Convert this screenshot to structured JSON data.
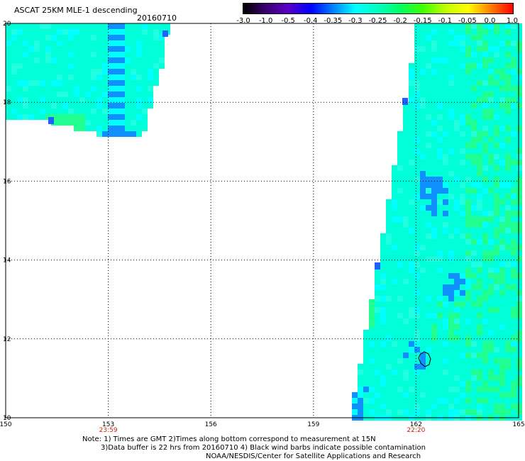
{
  "header": {
    "title": "ASCAT 25KM MLE-1 descending",
    "date": "20160710"
  },
  "colorbar": {
    "labels": [
      "-3.0",
      "-1.0",
      "-0.5",
      "-0.4",
      "-0.35",
      "-0.3",
      "-0.25",
      "-0.2",
      "-0.15",
      "-0.1",
      "-0.05",
      "0.0",
      "1.0"
    ],
    "colors": [
      "#000000",
      "#3a0070",
      "#5a00c8",
      "#0000ff",
      "#0080ff",
      "#00ffff",
      "#00ffc0",
      "#00ff60",
      "#40ff00",
      "#c0ff00",
      "#ffff00",
      "#ff8000",
      "#ff0000"
    ]
  },
  "map": {
    "lon_labels": [
      "150",
      "153",
      "156",
      "159",
      "162",
      "165"
    ],
    "lat_labels": [
      "20",
      "18",
      "16",
      "14",
      "12",
      "10"
    ],
    "time_labels": [
      {
        "lon": 153,
        "text": "23:59"
      },
      {
        "lon": 162,
        "text": "22:20"
      }
    ],
    "lon_range": [
      150,
      165
    ],
    "lat_range": [
      10,
      20
    ],
    "time_color": "#cc2200",
    "swath_colors": {
      "base": "#00ffd8",
      "cyan": "#00ffff",
      "light": "#20ffe0",
      "green": "#20ff90",
      "blue": "#1090ff",
      "deep_blue": "#2060ff"
    }
  },
  "notes": {
    "line1": "Note: 1) Times are GMT 2)Times along bottom correspond to measurement at 15N",
    "line2": "3)Data buffer is 22 hrs from 20160710 4) Black wind barbs indicate possible contamination",
    "line3": "NOAA/NESDIS/Center for Satellite Applications and Research"
  }
}
